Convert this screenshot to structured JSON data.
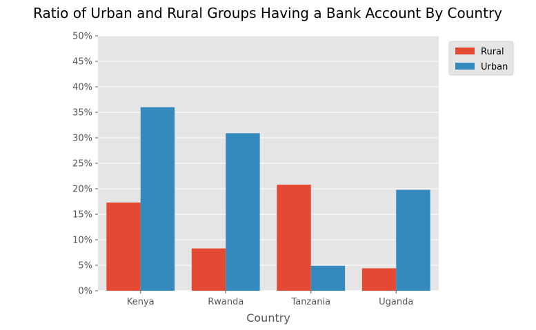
{
  "chart_data": {
    "type": "bar",
    "title": "Ratio of Urban and Rural Groups Having a Bank Account By Country",
    "xlabel": "Country",
    "ylabel": "",
    "categories": [
      "Kenya",
      "Rwanda",
      "Tanzania",
      "Uganda"
    ],
    "series": [
      {
        "name": "Rural",
        "color": "#E24A33",
        "values": [
          0.173,
          0.083,
          0.208,
          0.044
        ]
      },
      {
        "name": "Urban",
        "color": "#348ABD",
        "values": [
          0.36,
          0.309,
          0.049,
          0.198
        ]
      }
    ],
    "ylim": [
      0,
      0.5
    ],
    "yticks": [
      0,
      0.05,
      0.1,
      0.15,
      0.2,
      0.25,
      0.3,
      0.35,
      0.4,
      0.45,
      0.5
    ],
    "ytick_labels": [
      "0%",
      "5%",
      "10%",
      "15%",
      "20%",
      "25%",
      "30%",
      "35%",
      "40%",
      "45%",
      "50%"
    ],
    "grid": true,
    "legend_position": "upper right, outside plot",
    "background": "#E5E5E5"
  }
}
